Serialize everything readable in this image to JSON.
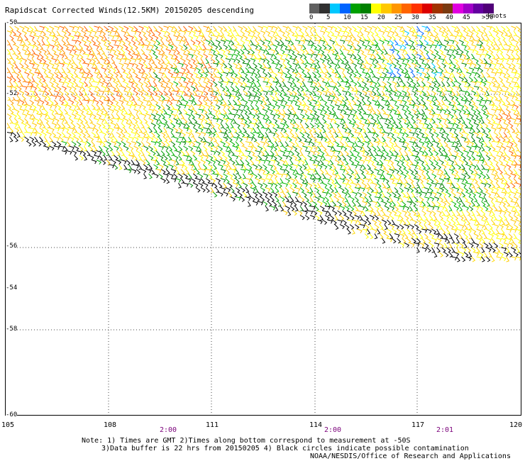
{
  "title": "Rapidscat Corrected Winds(12.5KM) 20150205 descending",
  "scale": {
    "labels": [
      "0",
      "5",
      "10",
      "15",
      "20",
      "25",
      "30",
      "35",
      "40",
      "45",
      ">50"
    ],
    "unit": "knots",
    "colors": [
      "#606060",
      "#303030",
      "#00c8ff",
      "#0064ff",
      "#00a000",
      "#008000",
      "#ffff00",
      "#ffc800",
      "#ff9600",
      "#ff6400",
      "#ff3200",
      "#dc0000",
      "#a03200",
      "#7a3a10",
      "#e000e0",
      "#a000c8",
      "#6400a0",
      "#500078"
    ]
  },
  "map": {
    "lat_labels": [
      "-50",
      "-52",
      "-54",
      "-56",
      "-58",
      "-60"
    ],
    "lon_labels": [
      "105",
      "108",
      "111",
      "114",
      "117",
      "120"
    ],
    "time_labels": [
      "2:00",
      "2:00",
      "2:01"
    ]
  },
  "notes": {
    "line1": "Note: 1) Times are GMT 2)Times along bottom correspond to measurement at -50S",
    "line2": "3)Data buffer is 22 hrs from 20150205 4) Black circles indicate possible contamination",
    "credit": "NOAA/NESDIS/Office of Research and Applications"
  }
}
